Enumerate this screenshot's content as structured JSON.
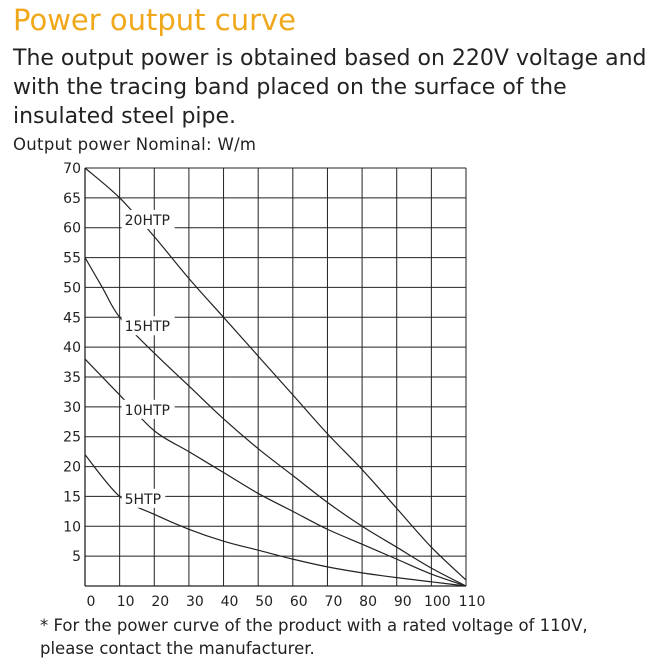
{
  "header": {
    "title": "Power output curve",
    "description_lines": [
      "The output power is obtained based on 220V voltage and",
      "with the tracing band placed on the surface of the",
      "insulated steel pipe."
    ],
    "unit_label": "Output power Nominal: W/m"
  },
  "colors": {
    "title": "#f0a81a",
    "text": "#222222",
    "grid": "#222222",
    "curve": "#222222"
  },
  "chart_data": {
    "type": "line",
    "title": "Power output curve",
    "ylabel": "Output power Nominal: W/m",
    "xlabel": "",
    "xlim": [
      0,
      110
    ],
    "ylim": [
      0,
      70
    ],
    "x_ticks": [
      0,
      10,
      20,
      30,
      40,
      50,
      60,
      70,
      80,
      90,
      100,
      110
    ],
    "y_ticks": [
      5,
      10,
      15,
      20,
      25,
      30,
      35,
      40,
      45,
      50,
      55,
      60,
      65,
      70
    ],
    "grid": true,
    "series": [
      {
        "name": "20HTP",
        "points": [
          [
            0,
            70
          ],
          [
            10,
            65
          ],
          [
            20,
            58.5
          ],
          [
            30,
            51.5
          ],
          [
            40,
            45
          ],
          [
            50,
            38.5
          ],
          [
            60,
            32
          ],
          [
            70,
            25.5
          ],
          [
            80,
            19.5
          ],
          [
            90,
            13
          ],
          [
            100,
            6.5
          ],
          [
            110,
            1
          ]
        ]
      },
      {
        "name": "15HTP",
        "points": [
          [
            0,
            55
          ],
          [
            5,
            50
          ],
          [
            10,
            45
          ],
          [
            20,
            39
          ],
          [
            30,
            33.5
          ],
          [
            40,
            28
          ],
          [
            50,
            23
          ],
          [
            60,
            18.5
          ],
          [
            70,
            14
          ],
          [
            80,
            10
          ],
          [
            90,
            6.5
          ],
          [
            100,
            3
          ],
          [
            110,
            0
          ]
        ]
      },
      {
        "name": "10HTP",
        "points": [
          [
            0,
            38
          ],
          [
            10,
            32
          ],
          [
            20,
            26
          ],
          [
            30,
            22.5
          ],
          [
            40,
            19
          ],
          [
            50,
            15.5
          ],
          [
            60,
            12.5
          ],
          [
            70,
            9.5
          ],
          [
            80,
            7
          ],
          [
            90,
            4.5
          ],
          [
            100,
            2
          ],
          [
            110,
            0
          ]
        ]
      },
      {
        "name": "5HTP",
        "points": [
          [
            0,
            22
          ],
          [
            10,
            15
          ],
          [
            20,
            12
          ],
          [
            30,
            9.5
          ],
          [
            40,
            7.5
          ],
          [
            50,
            6
          ],
          [
            60,
            4.5
          ],
          [
            70,
            3.2
          ],
          [
            80,
            2.2
          ],
          [
            90,
            1.4
          ],
          [
            100,
            0.7
          ],
          [
            110,
            0
          ]
        ]
      }
    ]
  },
  "footnote_lines": [
    "* For the power curve of the product with a rated voltage of 110V,",
    "please contact the manufacturer."
  ]
}
